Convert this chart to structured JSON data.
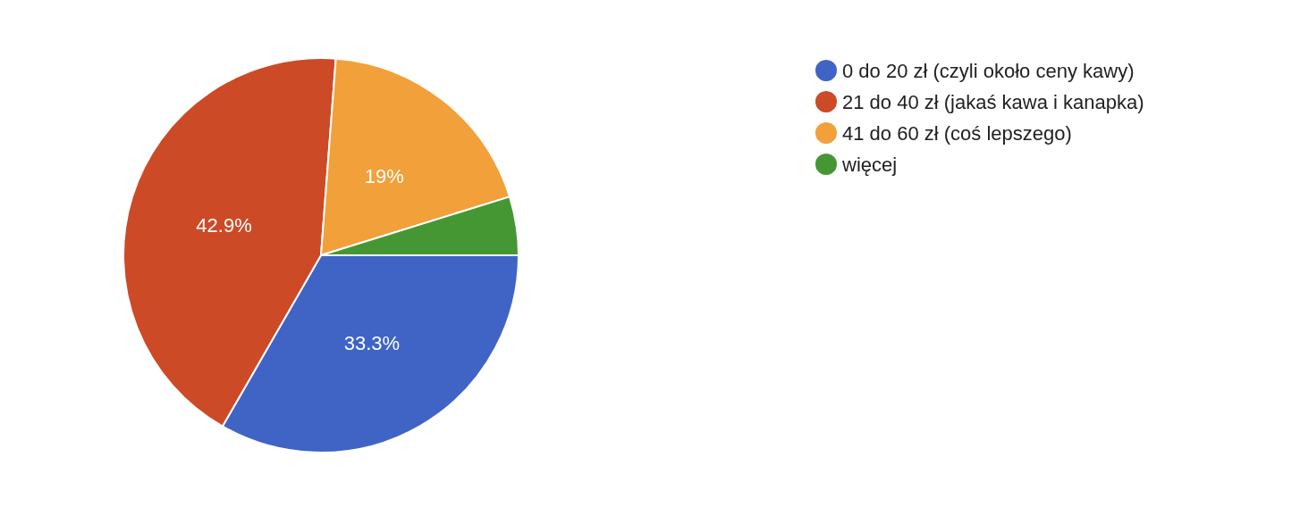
{
  "chart_data": {
    "type": "pie",
    "categories": [
      "0 do 20 zł (czyli około ceny kawy)",
      "21 do 40 zł (jakaś kawa i kanapka)",
      "41 do 60 zł (coś lepszego)",
      "więcej"
    ],
    "values": [
      33.3,
      42.9,
      19,
      4.8
    ],
    "value_labels": [
      "33.3%",
      "42.9%",
      "19%",
      null
    ],
    "colors": [
      "#3f64c6",
      "#cc4a26",
      "#f2a03a",
      "#459733"
    ],
    "legend": "right"
  }
}
